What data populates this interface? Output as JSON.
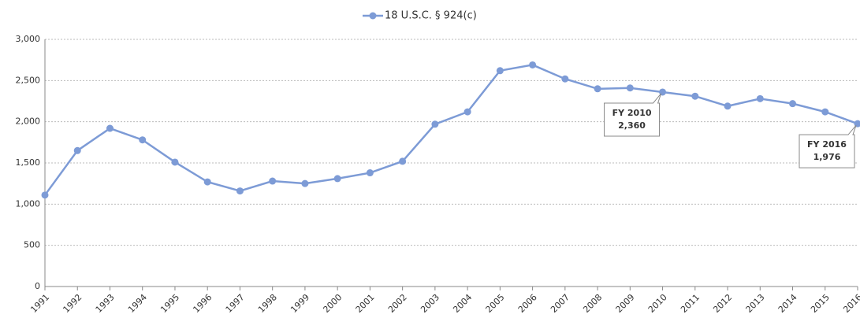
{
  "chart_data": {
    "type": "line",
    "categories": [
      "1991",
      "1992",
      "1993",
      "1994",
      "1995",
      "1996",
      "1997",
      "1998",
      "1999",
      "2000",
      "2001",
      "2002",
      "2003",
      "2004",
      "2005",
      "2006",
      "2007",
      "2008",
      "2009",
      "2010",
      "2011",
      "2012",
      "2013",
      "2014",
      "2015",
      "2016"
    ],
    "series": [
      {
        "name": "18 U.S.C. § 924(c)",
        "color": "#7d9bd6",
        "values": [
          1110,
          1650,
          1920,
          1780,
          1510,
          1270,
          1160,
          1280,
          1250,
          1310,
          1380,
          1520,
          1970,
          2120,
          2620,
          2690,
          2520,
          2400,
          2410,
          2360,
          2310,
          2190,
          2280,
          2220,
          2120,
          1976
        ],
        "value_labels": [
          null,
          null,
          null,
          null,
          null,
          null,
          null,
          null,
          null,
          null,
          null,
          null,
          null,
          null,
          null,
          null,
          null,
          null,
          null,
          "2,360",
          null,
          null,
          null,
          null,
          null,
          "1,976"
        ],
        "callout_titles": [
          null,
          null,
          null,
          null,
          null,
          null,
          null,
          null,
          null,
          null,
          null,
          null,
          null,
          null,
          null,
          null,
          null,
          null,
          null,
          "FY 2010",
          null,
          null,
          null,
          null,
          null,
          "FY 2016"
        ]
      }
    ],
    "ylim": [
      0,
      3000
    ],
    "yticks": [
      0,
      500,
      {
        "value": 1000,
        "label": "1,000"
      },
      {
        "value": 1500,
        "label": "1,500"
      },
      {
        "value": 2000,
        "label": "2,000"
      },
      {
        "value": 2500,
        "label": "2,500"
      },
      {
        "value": 3000,
        "label": "3,000"
      }
    ],
    "grid": true,
    "legend": "top"
  }
}
